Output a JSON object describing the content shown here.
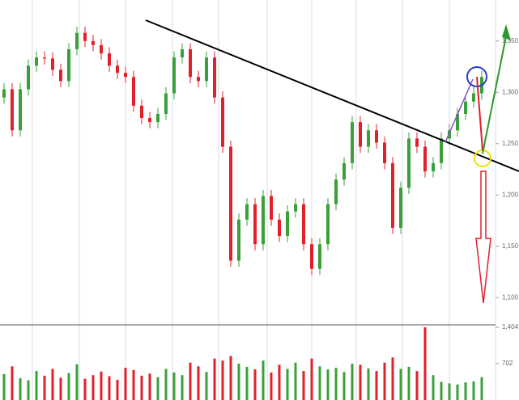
{
  "chart_data": {
    "type": "candlestick",
    "opens": [
      1295,
      1303,
      1263,
      1303,
      1326,
      1334,
      1333,
      1322,
      1311,
      1342,
      1358,
      1350,
      1346,
      1338,
      1326,
      1319,
      1315,
      1287,
      1275,
      1271,
      1279,
      1299,
      1334,
      1342,
      1315,
      1311,
      1334,
      1295,
      1247,
      1136,
      1176,
      1191,
      1152,
      1199,
      1176,
      1160,
      1184,
      1191,
      1152,
      1128,
      1152,
      1191,
      1215,
      1231,
      1271,
      1247,
      1263,
      1251,
      1231,
      1168,
      1207,
      1255,
      1247,
      1223,
      1231,
      1255,
      1263,
      1279,
      1291,
      1299
    ],
    "highs": [
      1309,
      1309,
      1309,
      1332,
      1340,
      1340,
      1339,
      1328,
      1348,
      1364,
      1364,
      1356,
      1352,
      1344,
      1332,
      1325,
      1321,
      1293,
      1281,
      1285,
      1305,
      1340,
      1348,
      1348,
      1321,
      1340,
      1340,
      1301,
      1253,
      1182,
      1197,
      1197,
      1205,
      1205,
      1182,
      1190,
      1197,
      1197,
      1158,
      1158,
      1197,
      1221,
      1237,
      1277,
      1277,
      1269,
      1269,
      1257,
      1237,
      1213,
      1261,
      1261,
      1253,
      1237,
      1261,
      1269,
      1285,
      1297,
      1305,
      1321
    ],
    "lows": [
      1289,
      1257,
      1257,
      1297,
      1320,
      1327,
      1316,
      1305,
      1305,
      1336,
      1344,
      1340,
      1332,
      1320,
      1313,
      1309,
      1281,
      1269,
      1265,
      1265,
      1273,
      1293,
      1328,
      1309,
      1305,
      1305,
      1289,
      1241,
      1130,
      1130,
      1170,
      1146,
      1146,
      1170,
      1154,
      1154,
      1178,
      1146,
      1122,
      1122,
      1146,
      1185,
      1209,
      1225,
      1241,
      1241,
      1245,
      1225,
      1162,
      1162,
      1201,
      1241,
      1217,
      1217,
      1225,
      1249,
      1257,
      1273,
      1285,
      1293
    ],
    "closes": [
      1303,
      1263,
      1303,
      1326,
      1334,
      1333,
      1322,
      1311,
      1342,
      1358,
      1350,
      1346,
      1338,
      1326,
      1319,
      1315,
      1287,
      1275,
      1271,
      1279,
      1299,
      1334,
      1342,
      1315,
      1311,
      1334,
      1295,
      1247,
      1136,
      1176,
      1191,
      1152,
      1199,
      1176,
      1160,
      1184,
      1191,
      1152,
      1128,
      1152,
      1191,
      1215,
      1231,
      1271,
      1247,
      1263,
      1251,
      1231,
      1168,
      1207,
      1255,
      1247,
      1223,
      1231,
      1255,
      1263,
      1279,
      1291,
      1299,
      1315
    ],
    "up_color": "#3aa03a",
    "down_color": "#e2202c",
    "ylim": [
      1075,
      1390
    ],
    "yticks": [
      {
        "value": 1100,
        "label": "1,100"
      },
      {
        "value": 1150,
        "label": "1,150"
      },
      {
        "value": 1200,
        "label": "1,200"
      },
      {
        "value": 1250,
        "label": "1,250"
      },
      {
        "value": 1300,
        "label": "1,300"
      },
      {
        "value": 1350,
        "label": "1,350"
      }
    ],
    "volume": {
      "type": "bar",
      "values": [
        500,
        650,
        420,
        380,
        560,
        470,
        600,
        430,
        520,
        690,
        410,
        480,
        550,
        460,
        390,
        620,
        580,
        470,
        510,
        440,
        600,
        530,
        480,
        720,
        650,
        540,
        800,
        760,
        850,
        700,
        640,
        590,
        760,
        530,
        680,
        600,
        720,
        560,
        800,
        650,
        590,
        620,
        540,
        700,
        680,
        610,
        560,
        720,
        820,
        600,
        640,
        560,
        1404,
        480,
        350,
        320,
        300,
        340,
        360,
        440
      ],
      "ylim": [
        0,
        1450
      ],
      "yticks": [
        702,
        {
          "value": 1404,
          "label": "1,404"
        }
      ]
    }
  }
}
